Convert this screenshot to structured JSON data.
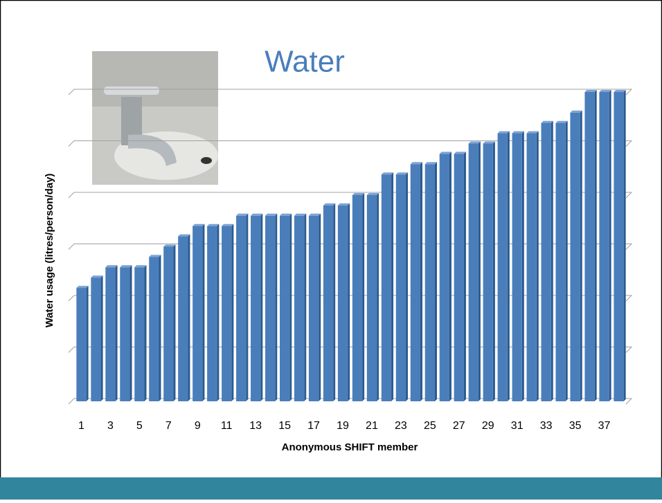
{
  "chart_data": {
    "type": "bar",
    "title": "Water",
    "x_label": "Anonymous SHIFT member",
    "y_label": "Water usage (litres/person/day)",
    "categories": [
      1,
      null,
      3,
      null,
      5,
      null,
      7,
      null,
      9,
      null,
      11,
      null,
      13,
      null,
      15,
      null,
      17,
      null,
      19,
      null,
      21,
      null,
      23,
      null,
      25,
      null,
      27,
      null,
      29,
      null,
      31,
      null,
      33,
      null,
      35,
      null,
      37,
      null
    ],
    "values": [
      2.2,
      2.4,
      2.6,
      2.6,
      2.6,
      2.8,
      3.0,
      3.2,
      3.4,
      3.4,
      3.4,
      3.6,
      3.6,
      3.6,
      3.6,
      3.6,
      3.6,
      3.8,
      3.8,
      4.0,
      4.0,
      4.4,
      4.4,
      4.6,
      4.6,
      4.8,
      4.8,
      5.0,
      5.0,
      5.2,
      5.2,
      5.2,
      5.4,
      5.4,
      5.6,
      6.0,
      6.0,
      6.0
    ],
    "color": "#4a7ebb",
    "ylim": [
      0,
      6
    ],
    "yticks": [
      0,
      1,
      2,
      3,
      4,
      5,
      6
    ],
    "grid": true
  }
}
